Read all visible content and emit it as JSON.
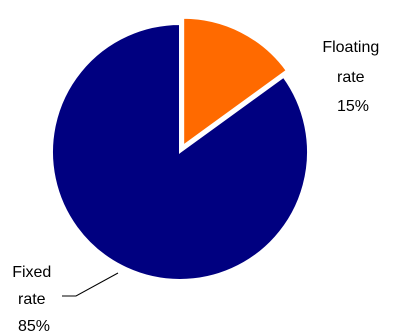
{
  "chart_data": {
    "type": "pie",
    "title": "",
    "slices": [
      {
        "name": "Floating rate",
        "label_lines": [
          "Floating",
          "rate",
          "15%"
        ],
        "value": 15,
        "color": "#FF6A00",
        "exploded": true
      },
      {
        "name": "Fixed rate",
        "label_lines": [
          "Fixed",
          "rate",
          "85%"
        ],
        "value": 85,
        "color": "#000080",
        "exploded": false
      }
    ],
    "start_angle": "12 o'clock, clockwise",
    "legend": "none"
  }
}
